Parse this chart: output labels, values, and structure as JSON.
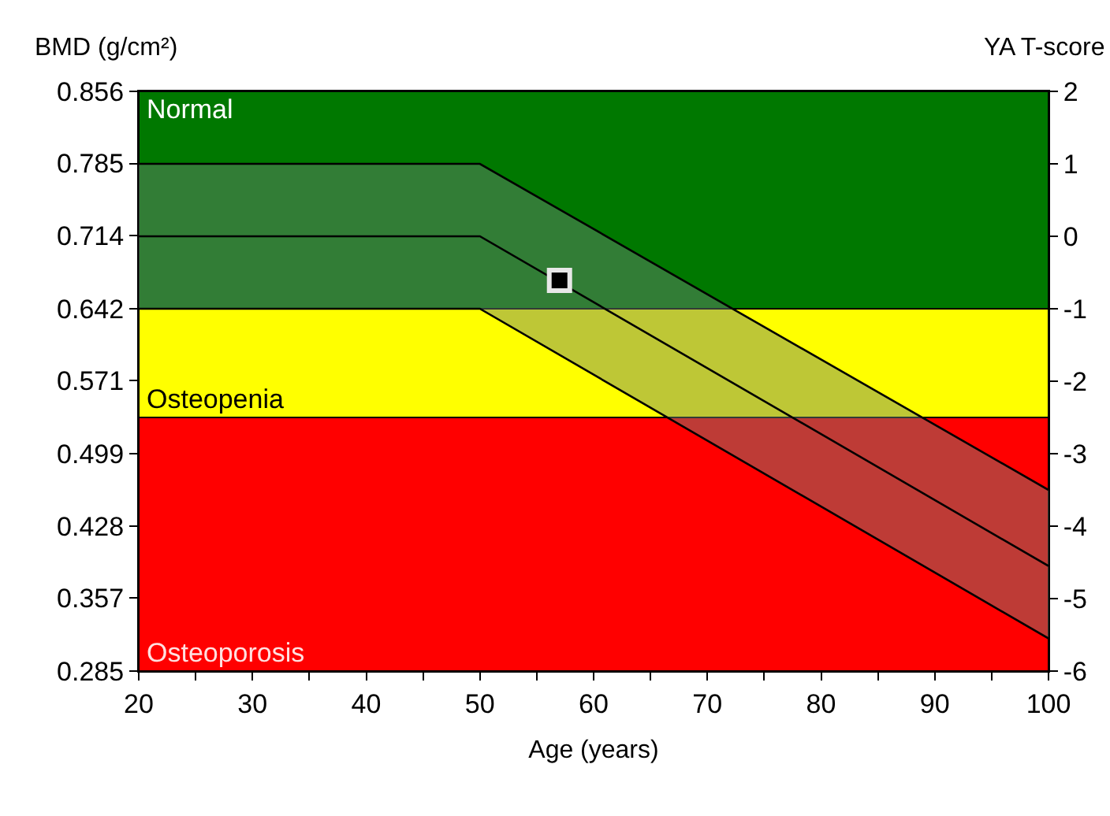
{
  "chart_data": {
    "type": "line",
    "xlabel": "Age (years)",
    "ylabel": "BMD (g/cm²)",
    "y2label": "YA T-score",
    "xlim": [
      20,
      100
    ],
    "xticks": [
      20,
      {
        "value": 25,
        "label": null
      },
      30,
      {
        "value": 35,
        "label": null
      },
      40,
      {
        "value": 45,
        "label": null
      },
      50,
      {
        "value": 55,
        "label": null
      },
      60,
      {
        "value": 65,
        "label": null
      },
      70,
      {
        "value": 75,
        "label": null
      },
      80,
      {
        "value": 85,
        "label": null
      },
      90,
      {
        "value": 95,
        "label": null
      },
      100
    ],
    "ylim": [
      0.285,
      0.856
    ],
    "yticks": [
      0.285,
      0.357,
      0.428,
      0.499,
      0.571,
      0.642,
      0.714,
      0.785,
      0.856
    ],
    "y2lim": [
      -6,
      2
    ],
    "y2ticks": [
      -6,
      -5,
      -4,
      -3,
      -2,
      -1,
      0,
      1,
      2
    ],
    "bands": [
      {
        "axis": "y2",
        "from": -1,
        "to": 2,
        "label": "Normal",
        "color": "#007800"
      },
      {
        "axis": "y2",
        "from": -2.5,
        "to": -1,
        "label": "Osteopenia",
        "color": "#ffff00"
      },
      {
        "axis": "y2",
        "from": -6,
        "to": -2.5,
        "label": "Osteoporosis",
        "color": "#ff0000"
      }
    ],
    "series": [
      {
        "axis": "y2",
        "color": "#000000",
        "x": [
          20,
          50,
          100
        ],
        "values": [
          0,
          0,
          -4.55
        ],
        "lower": [
          -1,
          -1,
          -5.55
        ],
        "upper": [
          1,
          1,
          -3.5
        ],
        "marker": "none"
      },
      {
        "axis": "y2",
        "color": "#000000",
        "x": [
          20,
          50,
          100
        ],
        "values": [
          1,
          1,
          -3.5
        ],
        "marker": "none"
      },
      {
        "axis": "y2",
        "color": "#000000",
        "x": [
          20,
          50,
          100
        ],
        "values": [
          -1,
          -1,
          -5.55
        ],
        "marker": "none"
      },
      {
        "type": "scatter",
        "axis": "y2",
        "color": "#000000",
        "x": [
          57
        ],
        "values": [
          -0.61
        ],
        "marker": "square"
      }
    ],
    "grid": false
  }
}
